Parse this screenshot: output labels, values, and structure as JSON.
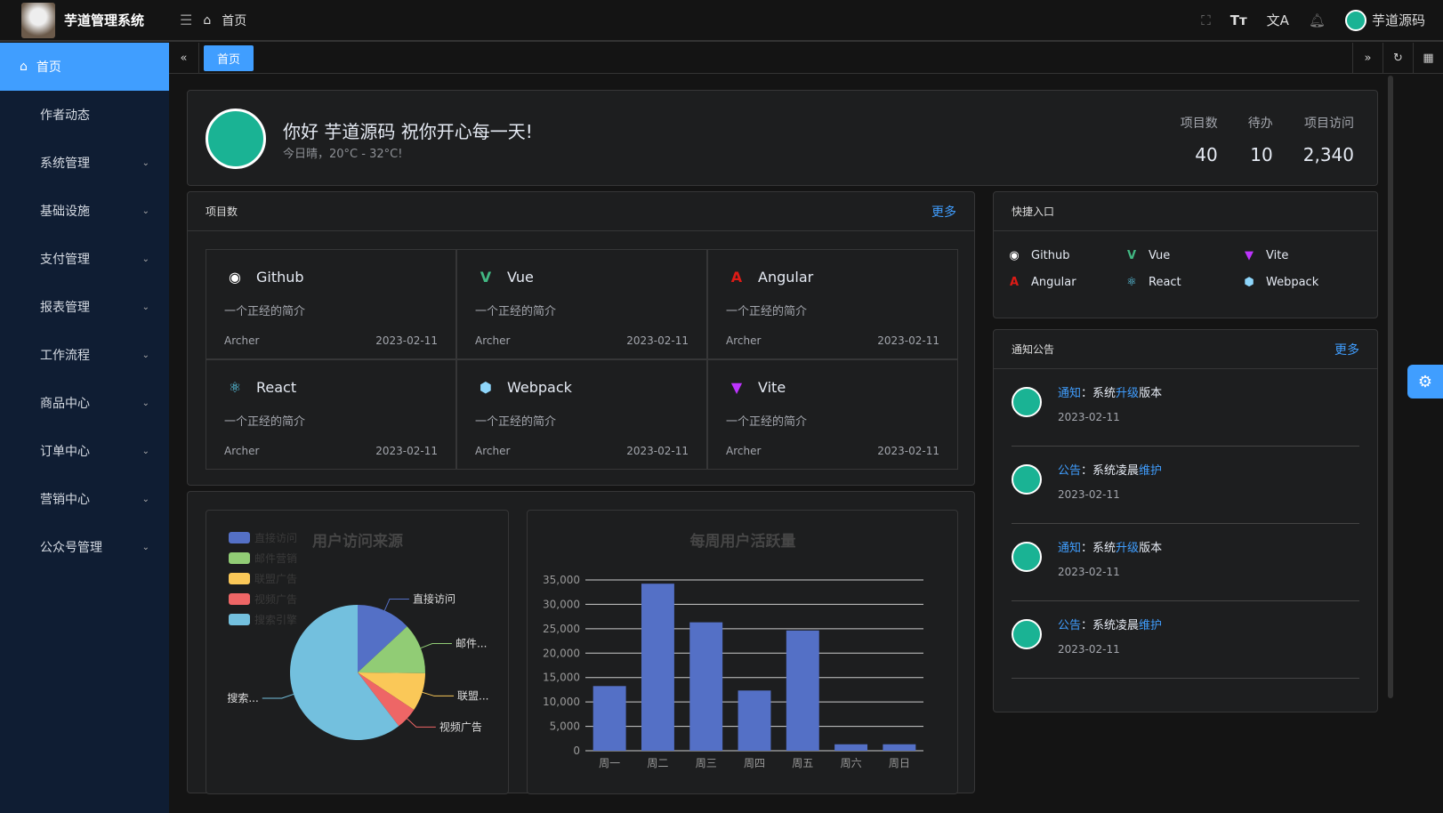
{
  "app": {
    "title": "芋道管理系统",
    "breadcrumb": "首页",
    "user": "芋道源码"
  },
  "sidebar": {
    "items": [
      {
        "label": "首页",
        "active": true
      },
      {
        "label": "作者动态"
      },
      {
        "label": "系统管理",
        "sub": true
      },
      {
        "label": "基础设施",
        "sub": true
      },
      {
        "label": "支付管理",
        "sub": true
      },
      {
        "label": "报表管理",
        "sub": true
      },
      {
        "label": "工作流程",
        "sub": true
      },
      {
        "label": "商品中心",
        "sub": true
      },
      {
        "label": "订单中心",
        "sub": true
      },
      {
        "label": "营销中心",
        "sub": true
      },
      {
        "label": "公众号管理",
        "sub": true
      }
    ]
  },
  "tabs": [
    {
      "label": "首页",
      "active": true
    }
  ],
  "welcome": {
    "greeting": "你好 芋道源码 祝你开心每一天!",
    "weather": "今日晴，20°C - 32°C!",
    "stats": [
      {
        "label": "项目数",
        "value": "40"
      },
      {
        "label": "待办",
        "value": "10"
      },
      {
        "label": "项目访问",
        "value": "2,340"
      }
    ]
  },
  "projects": {
    "title": "项目数",
    "more": "更多",
    "items": [
      {
        "name": "Github",
        "icon": "github-icon",
        "color": "#ffffff",
        "desc": "一个正经的简介",
        "author": "Archer",
        "date": "2023-02-11"
      },
      {
        "name": "Vue",
        "icon": "vue-icon",
        "color": "#42b883",
        "desc": "一个正经的简介",
        "author": "Archer",
        "date": "2023-02-11"
      },
      {
        "name": "Angular",
        "icon": "angular-icon",
        "color": "#dd1b16",
        "desc": "一个正经的简介",
        "author": "Archer",
        "date": "2023-02-11"
      },
      {
        "name": "React",
        "icon": "react-icon",
        "color": "#61dafb",
        "desc": "一个正经的简介",
        "author": "Archer",
        "date": "2023-02-11"
      },
      {
        "name": "Webpack",
        "icon": "webpack-icon",
        "color": "#8ed6fb",
        "desc": "一个正经的简介",
        "author": "Archer",
        "date": "2023-02-11"
      },
      {
        "name": "Vite",
        "icon": "vite-icon",
        "color": "#bd34fe",
        "desc": "一个正经的简介",
        "author": "Archer",
        "date": "2023-02-11"
      }
    ]
  },
  "quick": {
    "title": "快捷入口",
    "items": [
      {
        "name": "Github",
        "icon": "github-icon",
        "color": "#ffffff"
      },
      {
        "name": "Vue",
        "icon": "vue-icon",
        "color": "#42b883"
      },
      {
        "name": "Vite",
        "icon": "vite-icon",
        "color": "#bd34fe"
      },
      {
        "name": "Angular",
        "icon": "angular-icon",
        "color": "#dd1b16"
      },
      {
        "name": "React",
        "icon": "react-icon",
        "color": "#61dafb"
      },
      {
        "name": "Webpack",
        "icon": "webpack-icon",
        "color": "#8ed6fb"
      }
    ]
  },
  "notices": {
    "title": "通知公告",
    "more": "更多",
    "items": [
      {
        "type": "通知",
        "sep": "：",
        "pre": "系统",
        "hl": "升级",
        "post": "版本",
        "date": "2023-02-11"
      },
      {
        "type": "公告",
        "sep": "：",
        "pre": "系统凌晨",
        "hl": "维护",
        "post": "",
        "date": "2023-02-11"
      },
      {
        "type": "通知",
        "sep": "：",
        "pre": "系统",
        "hl": "升级",
        "post": "版本",
        "date": "2023-02-11"
      },
      {
        "type": "公告",
        "sep": "：",
        "pre": "系统凌晨",
        "hl": "维护",
        "post": "",
        "date": "2023-02-11"
      }
    ]
  },
  "chart_data": [
    {
      "type": "pie",
      "title": "用户访问来源",
      "legend_position": "top-left",
      "categories": [
        "直接访问",
        "邮件营销",
        "联盟广告",
        "视频广告",
        "搜索引擎"
      ],
      "labels": [
        "直接访问",
        "邮件...",
        "联盟...",
        "视频广告",
        "搜索..."
      ],
      "values": [
        335,
        310,
        234,
        135,
        1548
      ],
      "colors": [
        "#5470c6",
        "#91cc75",
        "#fac858",
        "#ee6666",
        "#73c0de"
      ]
    },
    {
      "type": "bar",
      "title": "每周用户活跃量",
      "categories": [
        "周一",
        "周二",
        "周三",
        "周四",
        "周五",
        "周六",
        "周日"
      ],
      "values": [
        13253,
        34235,
        26321,
        12340,
        24643,
        1322,
        1324
      ],
      "ylim": [
        0,
        35000
      ],
      "yticks": [
        "0",
        "5,000",
        "10,000",
        "15,000",
        "20,000",
        "25,000",
        "30,000",
        "35,000"
      ],
      "grid": true,
      "color": "#5470c6"
    }
  ]
}
